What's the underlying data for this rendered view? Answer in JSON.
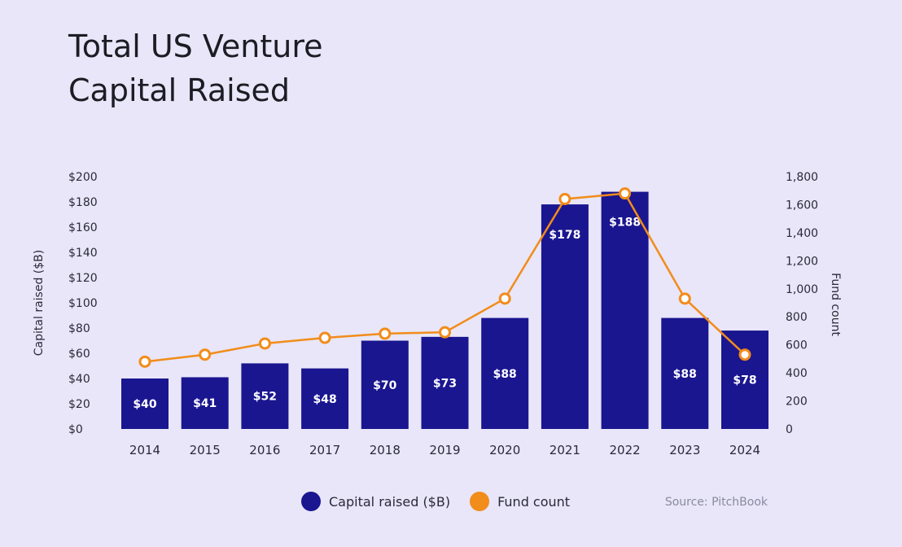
{
  "title": {
    "line1": "Total US Venture",
    "line2": "Capital Raised"
  },
  "legend": {
    "bars_label": "Capital raised ($B)",
    "line_label": "Fund count"
  },
  "source": "Source: PitchBook",
  "colors": {
    "bar": "#1a1690",
    "line": "#f28c1a",
    "background": "#e8e6f8",
    "bar_text": "#ffffff"
  },
  "chart_data": {
    "type": "bar",
    "categories": [
      "2014",
      "2015",
      "2016",
      "2017",
      "2018",
      "2019",
      "2020",
      "2021",
      "2022",
      "2023",
      "2024"
    ],
    "series": [
      {
        "name": "Capital raised ($B)",
        "type": "bar",
        "axis": "left",
        "values": [
          40,
          41,
          52,
          48,
          70,
          73,
          88,
          178,
          188,
          88,
          78
        ],
        "labels": [
          "$40",
          "$41",
          "$52",
          "$48",
          "$70",
          "$73",
          "$88",
          "$178",
          "$188",
          "$88",
          "$78"
        ]
      },
      {
        "name": "Fund count",
        "type": "line",
        "axis": "right",
        "values": [
          480,
          530,
          610,
          650,
          680,
          690,
          930,
          1640,
          1680,
          930,
          530
        ]
      }
    ],
    "ylabel": "Capital raised ($B)",
    "y2label": "Fund count",
    "ylim": [
      0,
      200
    ],
    "y2lim": [
      0,
      1800
    ],
    "yticks": [
      "$0",
      "$20",
      "$40",
      "$60",
      "$80",
      "$100",
      "$120",
      "$140",
      "$160",
      "$180",
      "$200"
    ],
    "y2ticks": [
      "0",
      "200",
      "400",
      "600",
      "800",
      "1,000",
      "1,200",
      "1,400",
      "1,600",
      "1,800"
    ],
    "grid": false,
    "legend_position": "bottom"
  }
}
